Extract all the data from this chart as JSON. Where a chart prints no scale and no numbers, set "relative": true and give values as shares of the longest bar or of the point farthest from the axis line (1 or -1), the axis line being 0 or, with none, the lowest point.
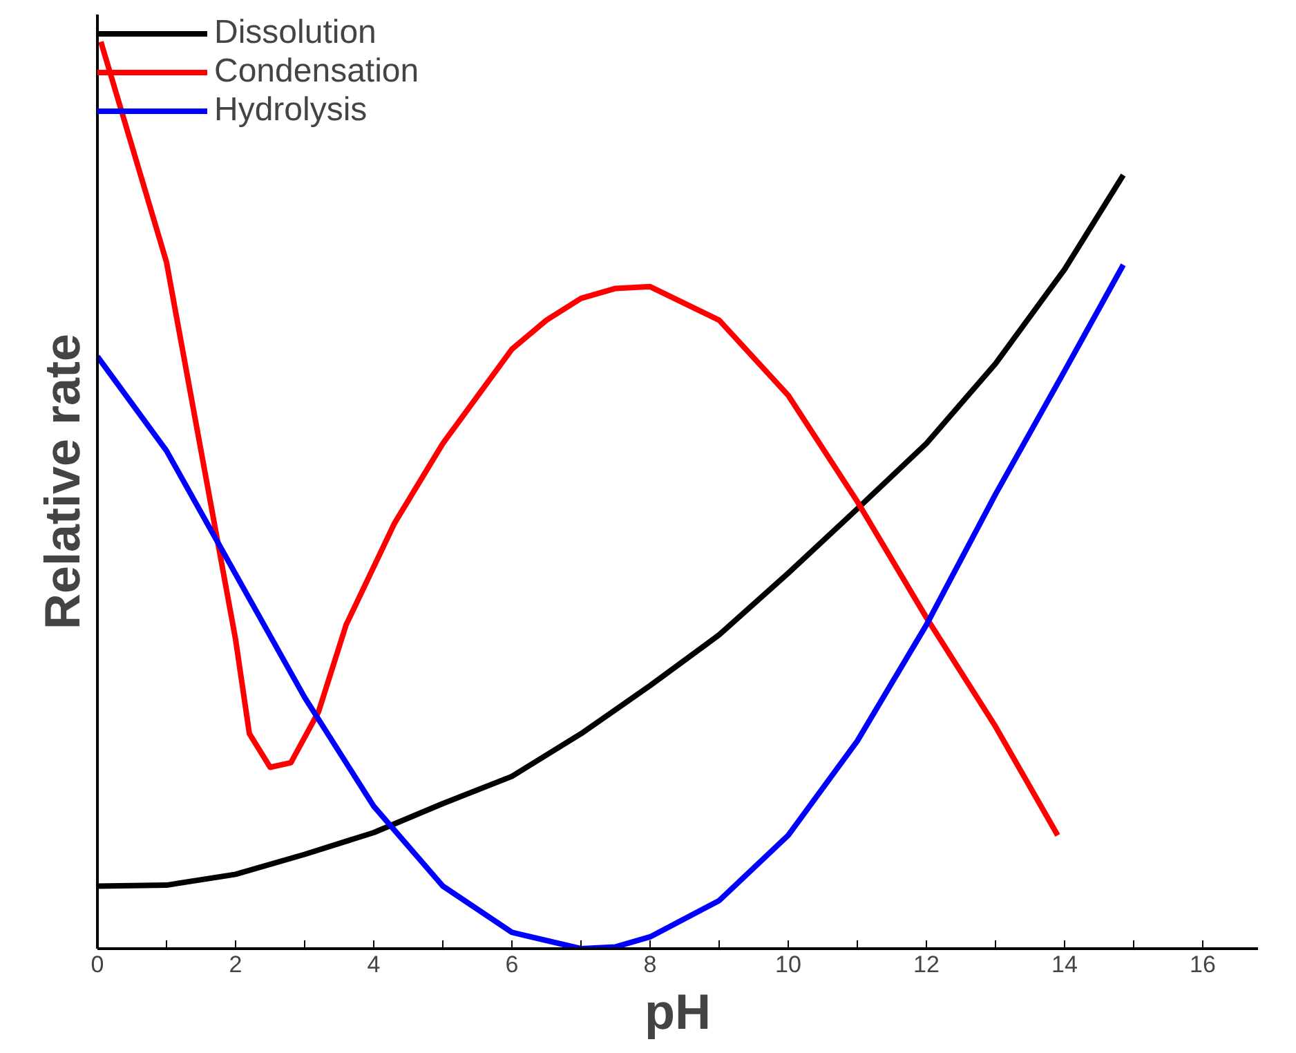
{
  "chart_data": {
    "type": "line",
    "xlabel": "pH",
    "ylabel": "Relative rate",
    "relative": true,
    "xlim": [
      0,
      16.8
    ],
    "xticks": [
      0,
      {
        "value": 1,
        "label": null
      },
      2,
      {
        "value": 3,
        "label": null
      },
      4,
      {
        "value": 5,
        "label": null
      },
      6,
      {
        "value": 7,
        "label": null
      },
      8,
      {
        "value": 9,
        "label": null
      },
      10,
      {
        "value": 11,
        "label": null
      },
      12,
      {
        "value": 13,
        "label": null
      },
      14,
      {
        "value": 15,
        "label": null
      },
      16
    ],
    "grid": false,
    "legend": "top left",
    "line_style": "solid",
    "marker": "none",
    "series": [
      {
        "name": "Dissolution",
        "color": "#000000",
        "x": [
          0,
          1,
          2,
          3,
          4,
          5,
          6,
          7,
          8,
          9,
          10,
          11,
          12,
          13,
          14,
          14.85
        ],
        "values": [
          0.069,
          0.07,
          0.082,
          0.104,
          0.128,
          0.16,
          0.19,
          0.237,
          0.29,
          0.346,
          0.414,
          0.485,
          0.557,
          0.645,
          0.749,
          0.853
        ]
      },
      {
        "name": "Condensation",
        "color": "#ff0000",
        "x": [
          0.05,
          0.5,
          1,
          1.5,
          2,
          2.2,
          2.5,
          2.8,
          3.2,
          3.6,
          4.3,
          5,
          6,
          6.5,
          7,
          7.5,
          8,
          9,
          10,
          11,
          12,
          13,
          13.9
        ],
        "values": [
          1.0,
          0.885,
          0.757,
          0.549,
          0.341,
          0.237,
          0.2,
          0.205,
          0.261,
          0.357,
          0.469,
          0.557,
          0.661,
          0.693,
          0.717,
          0.728,
          0.73,
          0.693,
          0.61,
          0.493,
          0.365,
          0.245,
          0.125
        ]
      },
      {
        "name": "Hydrolysis",
        "color": "#0000ff",
        "x": [
          0,
          1,
          2,
          3,
          4,
          5,
          6,
          7,
          7.5,
          8,
          9,
          10,
          11,
          12,
          13,
          14,
          14.85
        ],
        "values": [
          0.653,
          0.549,
          0.413,
          0.277,
          0.157,
          0.069,
          0.018,
          0.0,
          0.002,
          0.013,
          0.053,
          0.125,
          0.229,
          0.357,
          0.501,
          0.637,
          0.754
        ]
      }
    ]
  }
}
